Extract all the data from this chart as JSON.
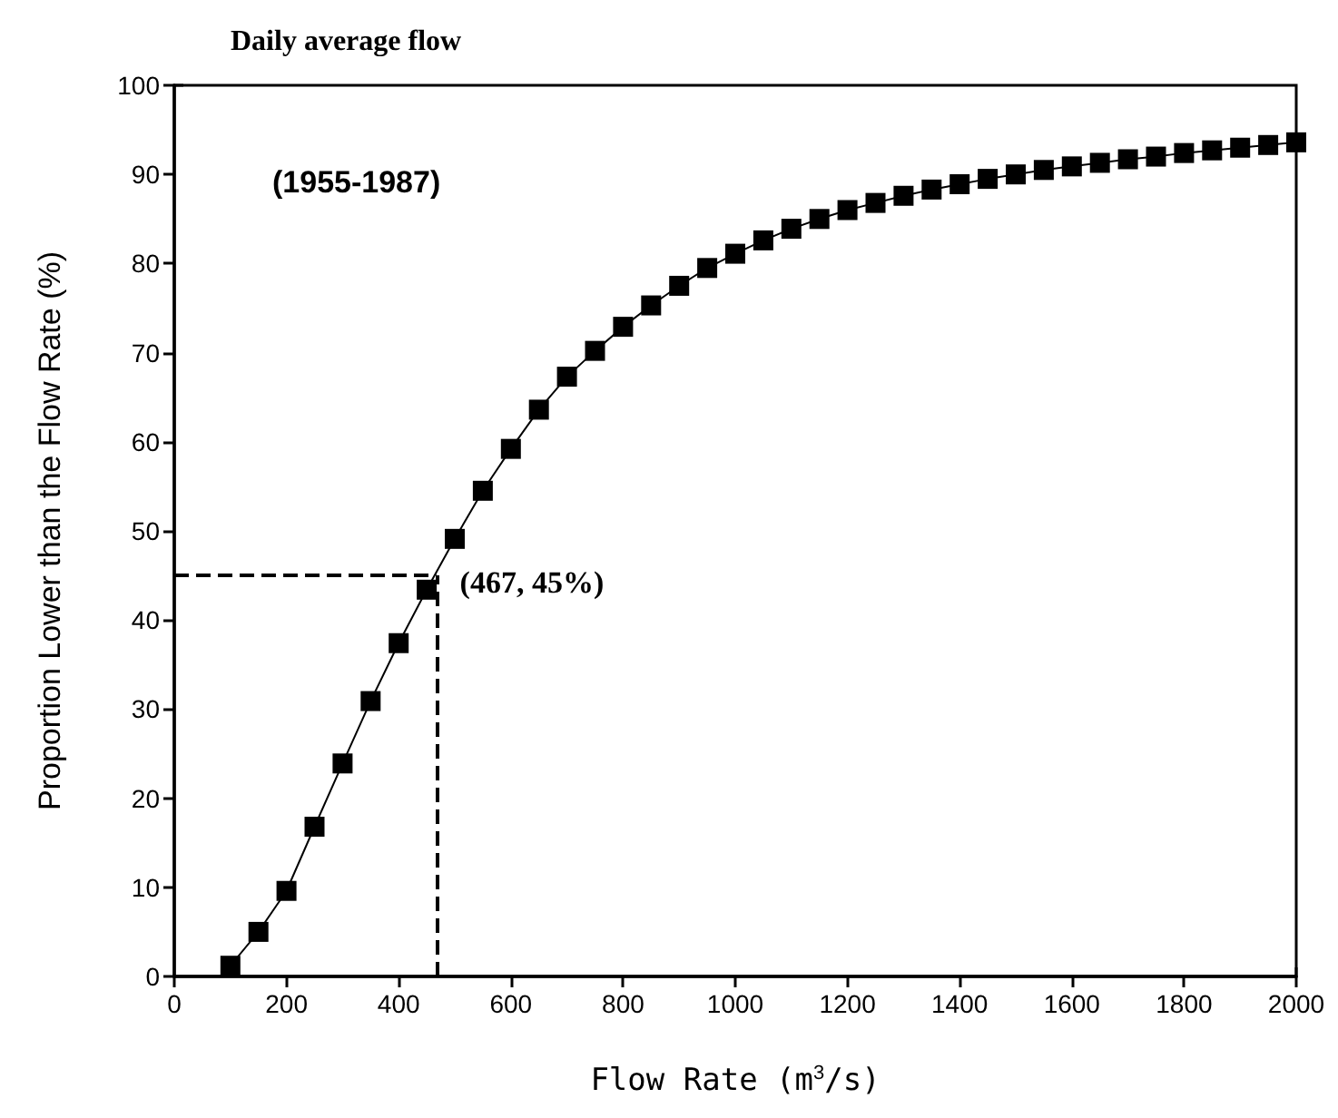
{
  "chart_data": {
    "type": "line",
    "title": "Daily average flow",
    "xlabel": "Flow Rate (m$^{3}$/s)",
    "ylabel": "Proportion Lower than the Flow Rate (%)",
    "x": [
      100,
      150,
      200,
      250,
      300,
      350,
      400,
      450,
      500,
      550,
      600,
      650,
      700,
      750,
      800,
      850,
      900,
      950,
      1000,
      1050,
      1100,
      1150,
      1200,
      1250,
      1300,
      1350,
      1400,
      1450,
      1500,
      1550,
      1600,
      1650,
      1700,
      1750,
      1800,
      1850,
      1900,
      1950,
      2000
    ],
    "series": [
      {
        "color": "#000000",
        "values": [
          1.2,
          5,
          9.6,
          16.8,
          23.9,
          30.9,
          37.4,
          43.4,
          49.1,
          54.5,
          59.2,
          63.6,
          67.3,
          70.2,
          72.9,
          75.3,
          77.5,
          79.5,
          81.1,
          82.6,
          83.9,
          85.0,
          86.0,
          86.8,
          87.6,
          88.3,
          88.9,
          89.5,
          90.0,
          90.5,
          90.9,
          91.3,
          91.7,
          92.0,
          92.4,
          92.7,
          93.0,
          93.3,
          93.6
        ]
      }
    ],
    "marker": "square",
    "line_style": "solid",
    "grid": false,
    "xlim": [
      0,
      2000
    ],
    "xticks": [
      0,
      200,
      400,
      600,
      800,
      1000,
      1200,
      1400,
      1600,
      1800,
      2000
    ],
    "ylim": [
      0,
      100
    ],
    "yticks": [
      0,
      10,
      20,
      30,
      40,
      50,
      60,
      70,
      80,
      90,
      100
    ],
    "ref_lines": [
      {
        "axis": "x",
        "value": 467,
        "line_style": "dashed",
        "color": "#000000"
      },
      {
        "axis": "y",
        "value": 45,
        "line_style": "dashed",
        "color": "#000000"
      }
    ],
    "annotations": [
      "(1955-1987)",
      {
        "text": "(467, 45%)",
        "x": 467,
        "y": 45
      }
    ]
  }
}
